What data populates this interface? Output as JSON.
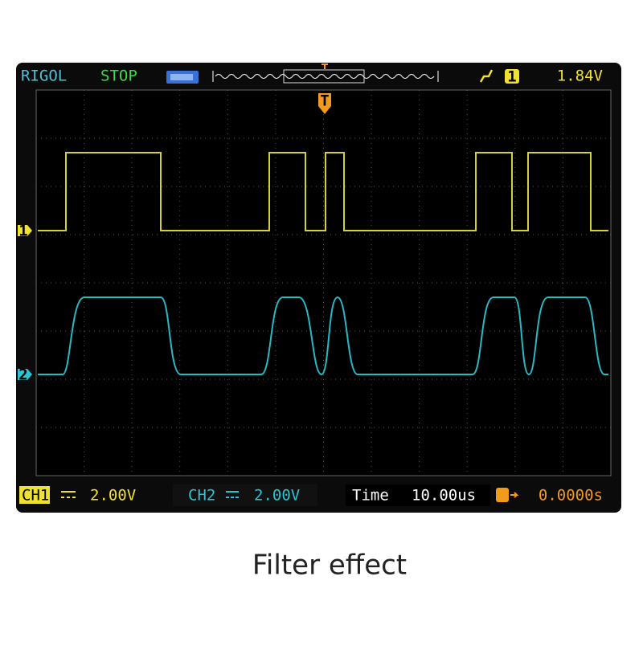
{
  "header": {
    "brand": "RIGOL",
    "status": "STOP",
    "trigger_channel": "1",
    "trigger_level": "1.84V"
  },
  "trigger_marker": "T",
  "channel_markers": [
    "1",
    "2"
  ],
  "footer": {
    "ch1_label": "CH1",
    "ch1_scale": "2.00V",
    "ch2_label": "CH2",
    "ch2_scale": "2.00V",
    "time_label": "Time",
    "time_scale": "10.00us",
    "trigger_offset": "0.0000s"
  },
  "caption": "Filter effect"
}
